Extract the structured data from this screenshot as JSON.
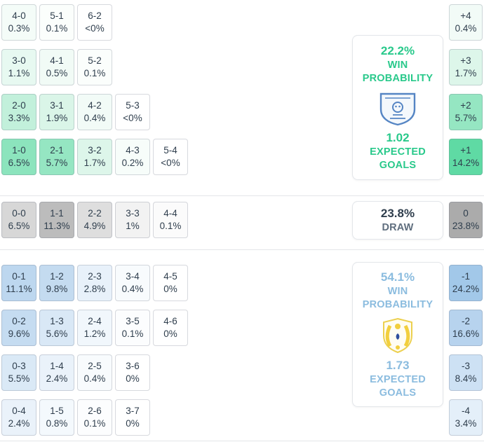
{
  "colors": {
    "home_accent": "#29c98b",
    "away_accent": "#8bbcdf",
    "draw_value": "#2f3e4d",
    "draw_label": "#5f6e7e",
    "cell_text": "#2f3e4d",
    "divider": "#e4e6e9"
  },
  "home": {
    "rows": [
      [
        {
          "score": "4-0",
          "pct": "0.3%",
          "bg": "#f4fcf8"
        },
        {
          "score": "5-1",
          "pct": "0.1%",
          "bg": "#fbfefc"
        },
        {
          "score": "6-2",
          "pct": "<0%",
          "bg": "#ffffff"
        }
      ],
      [
        {
          "score": "3-0",
          "pct": "1.1%",
          "bg": "#e7f9f1"
        },
        {
          "score": "4-1",
          "pct": "0.5%",
          "bg": "#f1fbf6"
        },
        {
          "score": "5-2",
          "pct": "0.1%",
          "bg": "#fbfefc"
        }
      ],
      [
        {
          "score": "2-0",
          "pct": "3.3%",
          "bg": "#c2f0db"
        },
        {
          "score": "3-1",
          "pct": "1.9%",
          "bg": "#daf5e8"
        },
        {
          "score": "4-2",
          "pct": "0.4%",
          "bg": "#f2fbf7"
        },
        {
          "score": "5-3",
          "pct": "<0%",
          "bg": "#ffffff"
        }
      ],
      [
        {
          "score": "1-0",
          "pct": "6.5%",
          "bg": "#8ce4bd"
        },
        {
          "score": "2-1",
          "pct": "5.7%",
          "bg": "#95e6c2"
        },
        {
          "score": "3-2",
          "pct": "1.7%",
          "bg": "#ddf6ea"
        },
        {
          "score": "4-3",
          "pct": "0.2%",
          "bg": "#f7fdfa"
        },
        {
          "score": "5-4",
          "pct": "<0%",
          "bg": "#ffffff"
        }
      ]
    ],
    "diffs": [
      {
        "label": "+4",
        "pct": "0.4%",
        "bg": "#f2fbf7"
      },
      {
        "label": "+3",
        "pct": "1.7%",
        "bg": "#ddf6ea"
      },
      {
        "label": "+2",
        "pct": "5.7%",
        "bg": "#95e6c2"
      },
      {
        "label": "+1",
        "pct": "14.2%",
        "bg": "#5fdaa4"
      }
    ],
    "panel": {
      "win_pct": "22.2%",
      "win_line1": "WIN",
      "win_line2": "PROBABILITY",
      "xg": "1.02",
      "xg_line1": "EXPECTED",
      "xg_line2": "GOALS"
    }
  },
  "draw": {
    "rows": [
      [
        {
          "score": "0-0",
          "pct": "6.5%",
          "bg": "#d7d7d7"
        },
        {
          "score": "1-1",
          "pct": "11.3%",
          "bg": "#bcbcbc"
        },
        {
          "score": "2-2",
          "pct": "4.9%",
          "bg": "#dedede"
        },
        {
          "score": "3-3",
          "pct": "1%",
          "bg": "#f2f2f2"
        },
        {
          "score": "4-4",
          "pct": "0.1%",
          "bg": "#fbfbfb"
        }
      ]
    ],
    "diffs": [
      {
        "label": "0",
        "pct": "23.8%",
        "bg": "#ababab"
      }
    ],
    "panel": {
      "pct": "23.8%",
      "label": "DRAW"
    }
  },
  "away": {
    "rows": [
      [
        {
          "score": "0-1",
          "pct": "11.1%",
          "bg": "#bdd7ef"
        },
        {
          "score": "1-2",
          "pct": "9.8%",
          "bg": "#c4dbf0"
        },
        {
          "score": "2-3",
          "pct": "2.8%",
          "bg": "#e8f1fa"
        },
        {
          "score": "3-4",
          "pct": "0.4%",
          "bg": "#f8fbfd"
        },
        {
          "score": "4-5",
          "pct": "0%",
          "bg": "#ffffff"
        }
      ],
      [
        {
          "score": "0-2",
          "pct": "9.6%",
          "bg": "#c5dcf1"
        },
        {
          "score": "1-3",
          "pct": "5.6%",
          "bg": "#d9e8f6"
        },
        {
          "score": "2-4",
          "pct": "1.2%",
          "bg": "#f1f7fc"
        },
        {
          "score": "3-5",
          "pct": "0.1%",
          "bg": "#fcfdfe"
        },
        {
          "score": "4-6",
          "pct": "0%",
          "bg": "#ffffff"
        }
      ],
      [
        {
          "score": "0-3",
          "pct": "5.5%",
          "bg": "#dae9f6"
        },
        {
          "score": "1-4",
          "pct": "2.4%",
          "bg": "#eaf2fa"
        },
        {
          "score": "2-5",
          "pct": "0.4%",
          "bg": "#f8fbfd"
        },
        {
          "score": "3-6",
          "pct": "0%",
          "bg": "#ffffff"
        }
      ],
      [
        {
          "score": "0-4",
          "pct": "2.4%",
          "bg": "#eaf2fa"
        },
        {
          "score": "1-5",
          "pct": "0.8%",
          "bg": "#f4f9fd"
        },
        {
          "score": "2-6",
          "pct": "0.1%",
          "bg": "#fcfdfe"
        },
        {
          "score": "3-7",
          "pct": "0%",
          "bg": "#ffffff"
        }
      ]
    ],
    "diffs": [
      {
        "label": "-1",
        "pct": "24.2%",
        "bg": "#a2c8e9"
      },
      {
        "label": "-2",
        "pct": "16.6%",
        "bg": "#b7d3ee"
      },
      {
        "label": "-3",
        "pct": "8.4%",
        "bg": "#cde1f4"
      },
      {
        "label": "-4",
        "pct": "3.4%",
        "bg": "#e4eff9"
      }
    ],
    "panel": {
      "win_pct": "54.1%",
      "win_line1": "WIN",
      "win_line2": "PROBABILITY",
      "xg": "1.73",
      "xg_line1": "EXPECTED",
      "xg_line2": "GOALS"
    }
  },
  "chart_data": {
    "type": "heatmap",
    "description": "Correct-score probability matrix with goal-difference margins, win probabilities and expected goals for both teams",
    "home_win": {
      "probability": "22.2%",
      "expected_goals": "1.02",
      "scores": [
        [
          "4-0",
          "0.3%"
        ],
        [
          "5-1",
          "0.1%"
        ],
        [
          "6-2",
          "<0%"
        ],
        [
          "3-0",
          "1.1%"
        ],
        [
          "4-1",
          "0.5%"
        ],
        [
          "5-2",
          "0.1%"
        ],
        [
          "2-0",
          "3.3%"
        ],
        [
          "3-1",
          "1.9%"
        ],
        [
          "4-2",
          "0.4%"
        ],
        [
          "5-3",
          "<0%"
        ],
        [
          "1-0",
          "6.5%"
        ],
        [
          "2-1",
          "5.7%"
        ],
        [
          "3-2",
          "1.7%"
        ],
        [
          "4-3",
          "0.2%"
        ],
        [
          "5-4",
          "<0%"
        ]
      ],
      "margins": [
        [
          "+4",
          "0.4%"
        ],
        [
          "+3",
          "1.7%"
        ],
        [
          "+2",
          "5.7%"
        ],
        [
          "+1",
          "14.2%"
        ]
      ]
    },
    "draw": {
      "probability": "23.8%",
      "scores": [
        [
          "0-0",
          "6.5%"
        ],
        [
          "1-1",
          "11.3%"
        ],
        [
          "2-2",
          "4.9%"
        ],
        [
          "3-3",
          "1%"
        ],
        [
          "4-4",
          "0.1%"
        ]
      ],
      "margins": [
        [
          "0",
          "23.8%"
        ]
      ]
    },
    "away_win": {
      "probability": "54.1%",
      "expected_goals": "1.73",
      "scores": [
        [
          "0-1",
          "11.1%"
        ],
        [
          "1-2",
          "9.8%"
        ],
        [
          "2-3",
          "2.8%"
        ],
        [
          "3-4",
          "0.4%"
        ],
        [
          "4-5",
          "0%"
        ],
        [
          "0-2",
          "9.6%"
        ],
        [
          "1-3",
          "5.6%"
        ],
        [
          "2-4",
          "1.2%"
        ],
        [
          "3-5",
          "0.1%"
        ],
        [
          "4-6",
          "0%"
        ],
        [
          "0-3",
          "5.5%"
        ],
        [
          "1-4",
          "2.4%"
        ],
        [
          "2-5",
          "0.4%"
        ],
        [
          "3-6",
          "0%"
        ],
        [
          "0-4",
          "2.4%"
        ],
        [
          "1-5",
          "0.8%"
        ],
        [
          "2-6",
          "0.1%"
        ],
        [
          "3-7",
          "0%"
        ]
      ],
      "margins": [
        [
          "-1",
          "24.2%"
        ],
        [
          "-2",
          "16.6%"
        ],
        [
          "-3",
          "8.4%"
        ],
        [
          "-4",
          "3.4%"
        ]
      ]
    }
  }
}
